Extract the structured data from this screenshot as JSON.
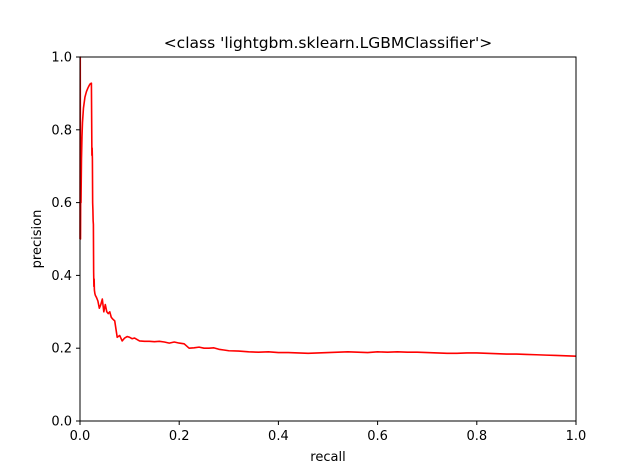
{
  "chart_data": {
    "type": "line",
    "title": "<class 'lightgbm.sklearn.LGBMClassifier'>",
    "xlabel": "recall",
    "ylabel": "precision",
    "xlim": [
      0,
      1
    ],
    "ylim": [
      0,
      1
    ],
    "grid": false,
    "legend": "none",
    "x_ticks": [
      0.0,
      0.2,
      0.4,
      0.6,
      0.8,
      1.0
    ],
    "x_tick_labels": [
      "0.0",
      "0.2",
      "0.4",
      "0.6",
      "0.8",
      "1.0"
    ],
    "y_ticks": [
      0.0,
      0.2,
      0.4,
      0.6,
      0.8,
      1.0
    ],
    "y_tick_labels": [
      "0.0",
      "0.2",
      "0.4",
      "0.6",
      "0.8",
      "1.0"
    ],
    "series": [
      {
        "color": "#ff0000",
        "x": [
          0.0,
          0.0005,
          0.001,
          0.0015,
          0.002,
          0.003,
          0.004,
          0.005,
          0.007,
          0.01,
          0.013,
          0.016,
          0.019,
          0.021,
          0.023,
          0.024,
          0.0245,
          0.025,
          0.0255,
          0.026,
          0.0265,
          0.027,
          0.0275,
          0.028,
          0.0285,
          0.029,
          0.03,
          0.031,
          0.033,
          0.036,
          0.039,
          0.042,
          0.045,
          0.048,
          0.051,
          0.054,
          0.057,
          0.06,
          0.063,
          0.066,
          0.07,
          0.075,
          0.08,
          0.085,
          0.09,
          0.095,
          0.1,
          0.105,
          0.11,
          0.12,
          0.13,
          0.14,
          0.15,
          0.16,
          0.17,
          0.18,
          0.19,
          0.2,
          0.21,
          0.22,
          0.23,
          0.24,
          0.25,
          0.26,
          0.27,
          0.28,
          0.29,
          0.3,
          0.32,
          0.34,
          0.36,
          0.38,
          0.4,
          0.42,
          0.44,
          0.46,
          0.48,
          0.5,
          0.52,
          0.54,
          0.56,
          0.58,
          0.6,
          0.62,
          0.64,
          0.66,
          0.68,
          0.7,
          0.72,
          0.74,
          0.76,
          0.78,
          0.8,
          0.82,
          0.84,
          0.86,
          0.88,
          0.9,
          0.92,
          0.94,
          0.96,
          0.98,
          1.0
        ],
        "y": [
          0.5,
          1.0,
          0.5,
          0.66,
          0.6,
          0.72,
          0.78,
          0.82,
          0.86,
          0.89,
          0.905,
          0.915,
          0.923,
          0.927,
          0.928,
          0.73,
          0.75,
          0.72,
          0.6,
          0.58,
          0.55,
          0.54,
          0.41,
          0.37,
          0.39,
          0.36,
          0.35,
          0.345,
          0.34,
          0.33,
          0.31,
          0.32,
          0.335,
          0.3,
          0.32,
          0.3,
          0.295,
          0.3,
          0.285,
          0.28,
          0.275,
          0.23,
          0.235,
          0.22,
          0.228,
          0.232,
          0.23,
          0.226,
          0.228,
          0.22,
          0.219,
          0.219,
          0.218,
          0.219,
          0.217,
          0.214,
          0.217,
          0.214,
          0.212,
          0.2,
          0.201,
          0.203,
          0.2,
          0.2,
          0.201,
          0.197,
          0.195,
          0.193,
          0.192,
          0.19,
          0.189,
          0.19,
          0.188,
          0.188,
          0.187,
          0.186,
          0.187,
          0.188,
          0.189,
          0.19,
          0.189,
          0.188,
          0.19,
          0.189,
          0.19,
          0.189,
          0.189,
          0.188,
          0.187,
          0.186,
          0.186,
          0.187,
          0.187,
          0.186,
          0.185,
          0.184,
          0.184,
          0.183,
          0.182,
          0.181,
          0.18,
          0.179,
          0.178
        ]
      }
    ]
  }
}
